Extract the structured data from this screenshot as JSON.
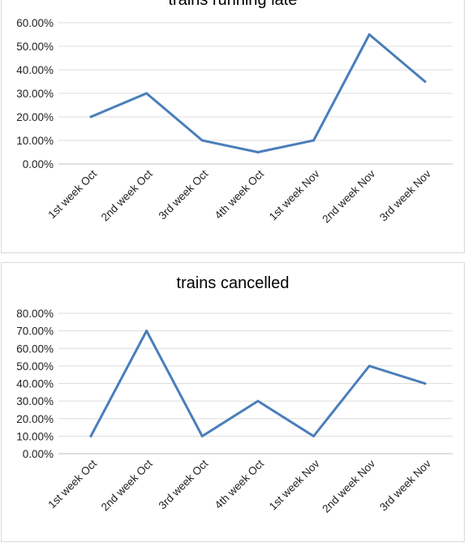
{
  "chart_data": [
    {
      "type": "line",
      "title": "trains running late",
      "categories": [
        "1st week Oct",
        "2nd week Oct",
        "3rd week Oct",
        "4th week Oct",
        "1st week Nov",
        "2nd week Nov",
        "3rd week Nov"
      ],
      "values": [
        20,
        30,
        10,
        5,
        10,
        55,
        35
      ],
      "ylim": [
        0,
        60
      ],
      "yticks": [
        "0.00%",
        "10.00%",
        "20.00%",
        "30.00%",
        "40.00%",
        "50.00%",
        "60.00%"
      ],
      "xlabel": "",
      "ylabel": "",
      "grid": true,
      "line_color": "#4a7ebb"
    },
    {
      "type": "line",
      "title": "trains cancelled",
      "categories": [
        "1st week Oct",
        "2nd week Oct",
        "3rd week Oct",
        "4th week Oct",
        "1st week Nov",
        "2nd week Nov",
        "3rd week Nov"
      ],
      "values": [
        10,
        70,
        10,
        30,
        10,
        50,
        40
      ],
      "ylim": [
        0,
        80
      ],
      "yticks": [
        "0.00%",
        "10.00%",
        "20.00%",
        "30.00%",
        "40.00%",
        "50.00%",
        "60.00%",
        "70.00%",
        "80.00%"
      ],
      "xlabel": "",
      "ylabel": "",
      "grid": true,
      "line_color": "#4a7ebb"
    }
  ]
}
